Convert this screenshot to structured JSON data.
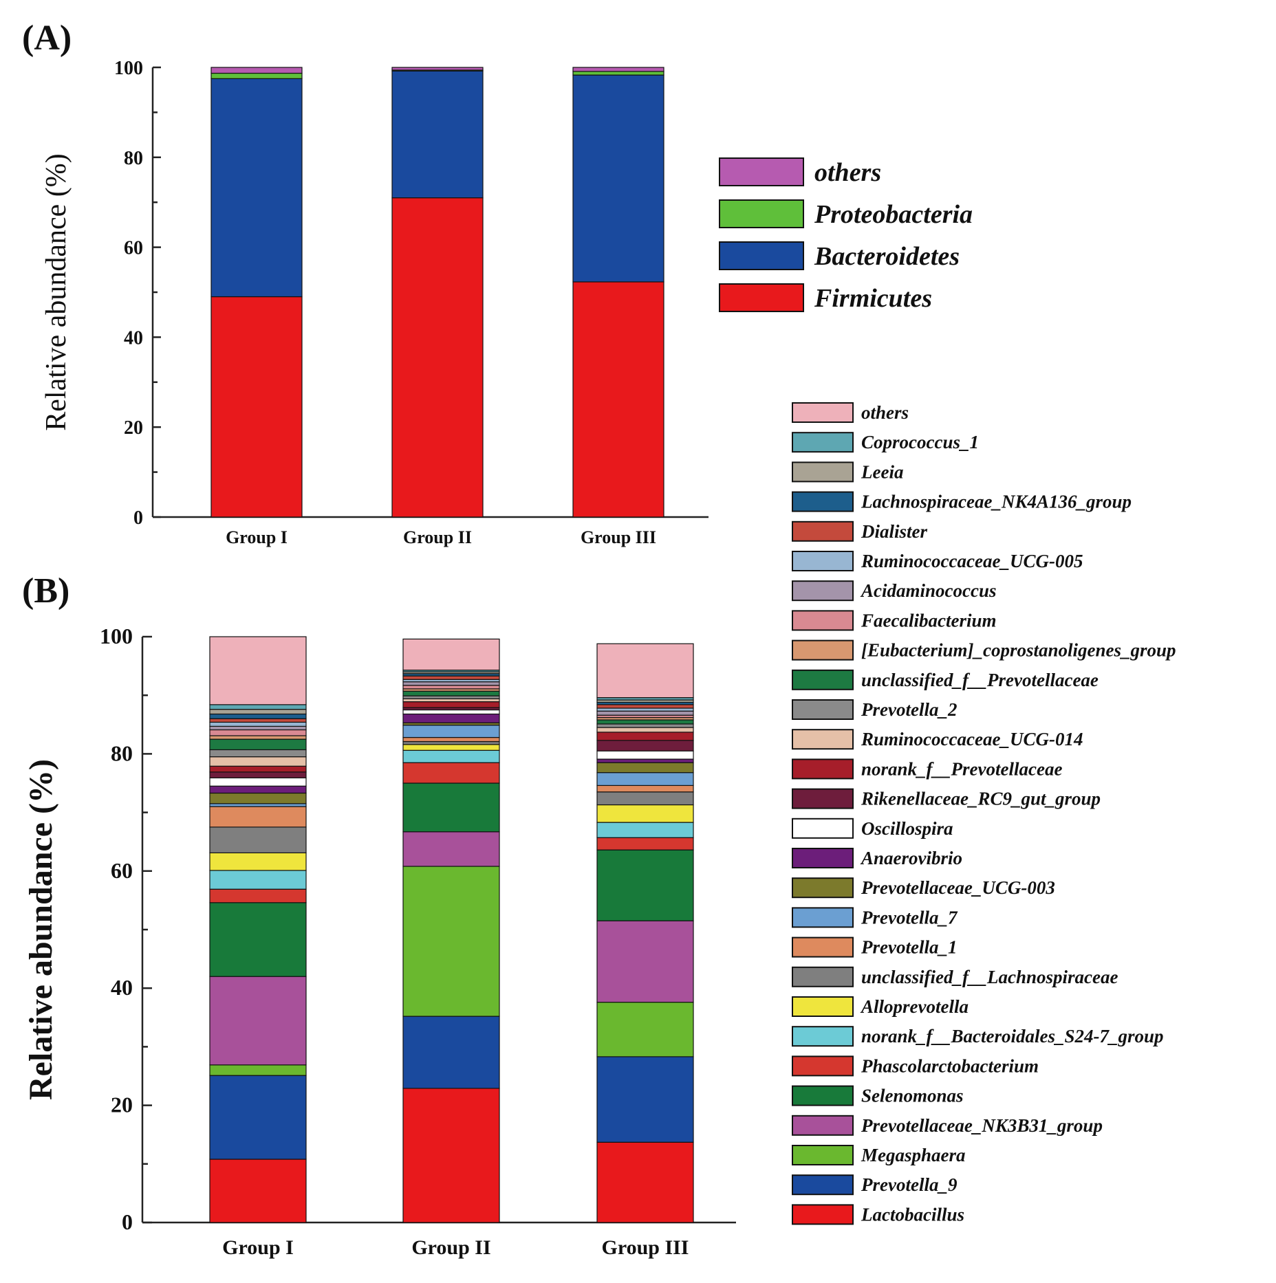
{
  "chart_data": [
    {
      "panel": "(A)",
      "type": "bar",
      "stacked": true,
      "ylabel": "Relative abundance (%)",
      "ylim": [
        0,
        100
      ],
      "yticks": [
        0,
        20,
        40,
        60,
        80,
        100
      ],
      "categories": [
        "Group I",
        "Group II",
        "Group III"
      ],
      "legend_position": "right",
      "series": [
        {
          "name": "Firmicutes",
          "color": "#e8191c",
          "values": [
            49,
            71,
            52.3
          ]
        },
        {
          "name": "Bacteroidetes",
          "color": "#1a4a9e",
          "values": [
            48.5,
            28.2,
            46
          ]
        },
        {
          "name": "Proteobacteria",
          "color": "#5fbf3a",
          "values": [
            1.2,
            0.2,
            0.8
          ]
        },
        {
          "name": "others",
          "color": "#b65bb0",
          "values": [
            1.3,
            0.6,
            0.9
          ]
        }
      ]
    },
    {
      "panel": "(B)",
      "type": "bar",
      "stacked": true,
      "ylabel": "Relative abundance (%)",
      "ylim": [
        0,
        100
      ],
      "yticks": [
        0,
        20,
        40,
        60,
        80,
        100
      ],
      "categories": [
        "Group I",
        "Group II",
        "Group III"
      ],
      "legend_position": "right",
      "series": [
        {
          "name": "Lactobacillus",
          "color": "#e8191c",
          "values": [
            10.8,
            22.9,
            13.7
          ]
        },
        {
          "name": "Prevotella_9",
          "color": "#1a4a9e",
          "values": [
            14.3,
            12.3,
            14.6
          ]
        },
        {
          "name": "Megasphaera",
          "color": "#6ab82f",
          "values": [
            1.8,
            25.6,
            9.3
          ]
        },
        {
          "name": "Prevotellaceae_NK3B31_group",
          "color": "#a8519a",
          "values": [
            15.1,
            5.9,
            13.9
          ]
        },
        {
          "name": "Selenomonas",
          "color": "#187a3a",
          "values": [
            12.6,
            8.3,
            12.1
          ]
        },
        {
          "name": "Phascolarctobacterium",
          "color": "#d5372f",
          "values": [
            2.3,
            3.5,
            2.1
          ]
        },
        {
          "name": "norank_f__Bacteroidales_S24-7_group",
          "color": "#6ccbd6",
          "values": [
            3.2,
            2.1,
            2.6
          ]
        },
        {
          "name": "Alloprevotella",
          "color": "#efe53d",
          "values": [
            3.0,
            1.0,
            3.0
          ]
        },
        {
          "name": "unclassified_f__Lachnospiraceae",
          "color": "#7f7f7f",
          "values": [
            4.4,
            0.5,
            2.2
          ]
        },
        {
          "name": "Prevotella_1",
          "color": "#de8a5e",
          "values": [
            3.5,
            0.7,
            1.1
          ]
        },
        {
          "name": "Prevotella_7",
          "color": "#6b9fd2",
          "values": [
            0.5,
            2.1,
            2.2
          ]
        },
        {
          "name": "Prevotellaceae_UCG-003",
          "color": "#7c7a2c",
          "values": [
            1.8,
            0.4,
            1.7
          ]
        },
        {
          "name": "Anaerovibrio",
          "color": "#6c1e7a",
          "values": [
            1.2,
            1.5,
            0.6
          ]
        },
        {
          "name": "Oscillospira",
          "color": "#ffffff",
          "values": [
            1.4,
            0.7,
            1.4
          ]
        },
        {
          "name": "Rikenellaceae_RC9_gut_group",
          "color": "#6e1d3c",
          "values": [
            1.0,
            0.4,
            1.8
          ]
        },
        {
          "name": "norank_f__Prevotellaceae",
          "color": "#a61e2a",
          "values": [
            1.0,
            1.0,
            1.4
          ]
        },
        {
          "name": "Ruminococcaceae_UCG-014",
          "color": "#e5c0a8",
          "values": [
            1.6,
            0.5,
            0.8
          ]
        },
        {
          "name": "Prevotella_2",
          "color": "#8a8a8a",
          "values": [
            1.2,
            0.5,
            0.6
          ]
        },
        {
          "name": "unclassified_f__Prevotellaceae",
          "color": "#1d7a42",
          "values": [
            1.8,
            0.8,
            0.7
          ]
        },
        {
          "name": "[Eubacterium]_coprostanoligenes_group",
          "color": "#d89870",
          "values": [
            0.6,
            0.4,
            0.4
          ]
        },
        {
          "name": "Faecalibacterium",
          "color": "#d98a92",
          "values": [
            1.0,
            0.6,
            0.4
          ]
        },
        {
          "name": "Acidaminococcus",
          "color": "#a494aa",
          "values": [
            0.6,
            0.6,
            0.7
          ]
        },
        {
          "name": "Ruminococcaceae_UCG-005",
          "color": "#98b6d2",
          "values": [
            0.7,
            0.4,
            0.5
          ]
        },
        {
          "name": "Dialister",
          "color": "#c44a3c",
          "values": [
            0.6,
            0.6,
            0.6
          ]
        },
        {
          "name": "Lachnospiraceae_NK4A136_group",
          "color": "#1d5e8c",
          "values": [
            0.8,
            0.4,
            0.4
          ]
        },
        {
          "name": "Leeia",
          "color": "#a9a394",
          "values": [
            0.8,
            0.3,
            0.4
          ]
        },
        {
          "name": "Coprococcus_1",
          "color": "#5ea7b2",
          "values": [
            0.8,
            0.3,
            0.4
          ]
        },
        {
          "name": "others",
          "color": "#eeb1ba",
          "values": [
            11.6,
            5.3,
            9.2
          ]
        }
      ]
    }
  ]
}
